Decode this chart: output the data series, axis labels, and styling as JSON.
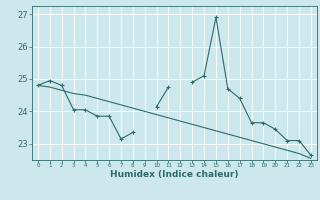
{
  "x": [
    0,
    1,
    2,
    3,
    4,
    5,
    6,
    7,
    8,
    9,
    10,
    11,
    12,
    13,
    14,
    15,
    16,
    17,
    18,
    19,
    20,
    21,
    22,
    23
  ],
  "line1": [
    24.8,
    24.95,
    24.8,
    24.05,
    24.05,
    23.85,
    23.85,
    23.15,
    23.35,
    null,
    24.15,
    24.75,
    null,
    24.9,
    25.1,
    26.9,
    24.7,
    24.4,
    23.65,
    23.65,
    23.45,
    23.1,
    23.1,
    22.65
  ],
  "line2": [
    24.8,
    24.75,
    24.65,
    24.55,
    24.5,
    24.4,
    24.3,
    24.2,
    24.1,
    24.0,
    23.9,
    23.8,
    23.7,
    23.6,
    23.5,
    23.4,
    23.3,
    23.2,
    23.1,
    23.0,
    22.9,
    22.8,
    22.7,
    22.55
  ],
  "xlabel": "Humidex (Indice chaleur)",
  "ylim": [
    22.5,
    27.25
  ],
  "xlim": [
    -0.5,
    23.5
  ],
  "bg_color": "#cce8ec",
  "line_color": "#2e6b6b",
  "grid_color": "#ffffff"
}
